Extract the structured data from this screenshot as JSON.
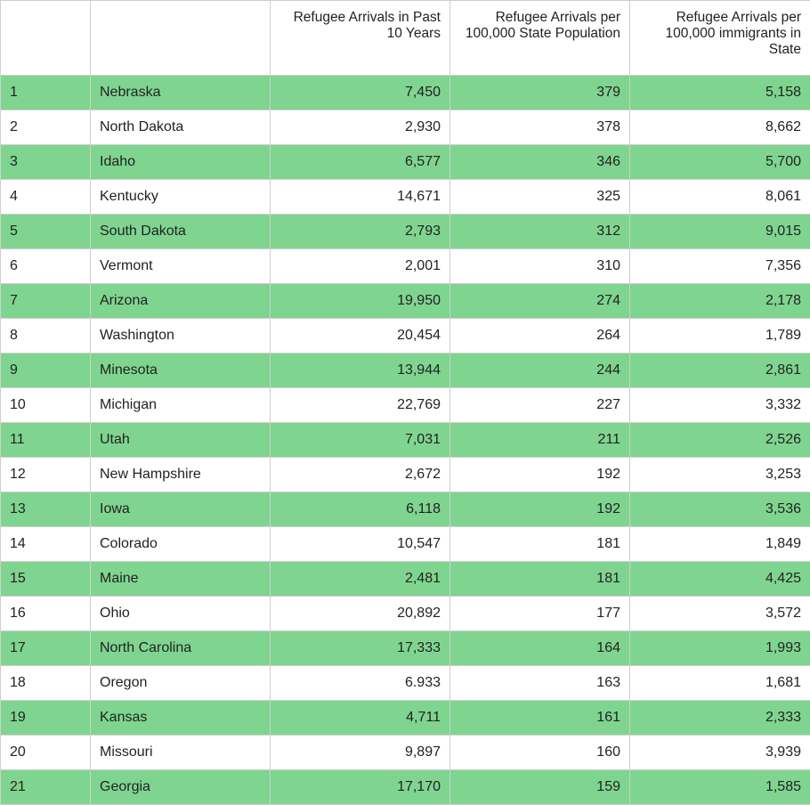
{
  "headers": [
    "",
    "",
    "Refugee Arrivals in Past 10 Years",
    "Refugee Arrivals per 100,000 State Population",
    "Refugee Arrivals per 100,000 immigrants in State"
  ],
  "colors": {
    "highlight": "#7fd58f",
    "grid": "#cfcfcf"
  },
  "rows": [
    [
      "1",
      "Nebraska",
      "7,450",
      "379",
      "5,158"
    ],
    [
      "2",
      "North Dakota",
      "2,930",
      "378",
      "8,662"
    ],
    [
      "3",
      "Idaho",
      "6,577",
      "346",
      "5,700"
    ],
    [
      "4",
      "Kentucky",
      "14,671",
      "325",
      "8,061"
    ],
    [
      "5",
      "South Dakota",
      "2,793",
      "312",
      "9,015"
    ],
    [
      "6",
      "Vermont",
      "2,001",
      "310",
      "7,356"
    ],
    [
      "7",
      "Arizona",
      "19,950",
      "274",
      "2,178"
    ],
    [
      "8",
      "Washington",
      "20,454",
      "264",
      "1,789"
    ],
    [
      "9",
      "Minesota",
      "13,944",
      "244",
      "2,861"
    ],
    [
      "10",
      "Michigan",
      "22,769",
      "227",
      "3,332"
    ],
    [
      "11",
      "Utah",
      "7,031",
      "211",
      "2,526"
    ],
    [
      "12",
      "New Hampshire",
      "2,672",
      "192",
      "3,253"
    ],
    [
      "13",
      "Iowa",
      "6,118",
      "192",
      "3,536"
    ],
    [
      "14",
      "Colorado",
      "10,547",
      "181",
      "1,849"
    ],
    [
      "15",
      "Maine",
      "2,481",
      "181",
      "4,425"
    ],
    [
      "16",
      "Ohio",
      "20,892",
      "177",
      "3,572"
    ],
    [
      "17",
      "North Carolina",
      "17,333",
      "164",
      "1,993"
    ],
    [
      "18",
      "Oregon",
      "6.933",
      "163",
      "1,681"
    ],
    [
      "19",
      "Kansas",
      "4,711",
      "161",
      "2,333"
    ],
    [
      "20",
      "Missouri",
      "9,897",
      "160",
      "3,939"
    ],
    [
      "21",
      "Georgia",
      "17,170",
      "159",
      "1,585"
    ]
  ]
}
